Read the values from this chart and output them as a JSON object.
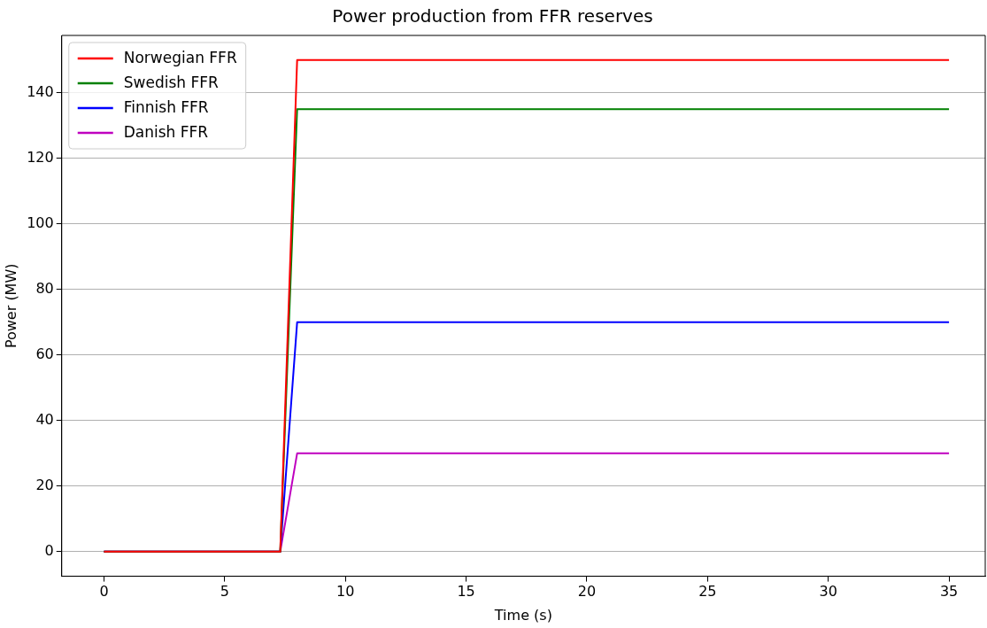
{
  "chart_data": {
    "type": "line",
    "title": "Power production from FFR reserves",
    "xlabel": "Time (s)",
    "ylabel": "Power (MW)",
    "x": [
      0,
      7.3,
      8,
      35
    ],
    "series": [
      {
        "name": "Norwegian FFR",
        "color": "#ff0000",
        "values": [
          0,
          0,
          150,
          150
        ]
      },
      {
        "name": "Swedish FFR",
        "color": "#008000",
        "values": [
          0,
          0,
          135,
          135
        ]
      },
      {
        "name": "Finnish FFR",
        "color": "#0000ff",
        "values": [
          0,
          0,
          70,
          70
        ]
      },
      {
        "name": "Danish FFR",
        "color": "#bf00bf",
        "values": [
          0,
          0,
          30,
          30
        ]
      }
    ],
    "xlim": [
      -1.75,
      36.5
    ],
    "xticks": [
      0,
      5,
      10,
      15,
      20,
      25,
      30,
      35
    ],
    "ylim": [
      -7.5,
      157.5
    ],
    "yticks": [
      0,
      20,
      40,
      60,
      80,
      100,
      120,
      140
    ],
    "grid": "y",
    "legend": "top left",
    "marker": "none",
    "line_style": "solid"
  }
}
